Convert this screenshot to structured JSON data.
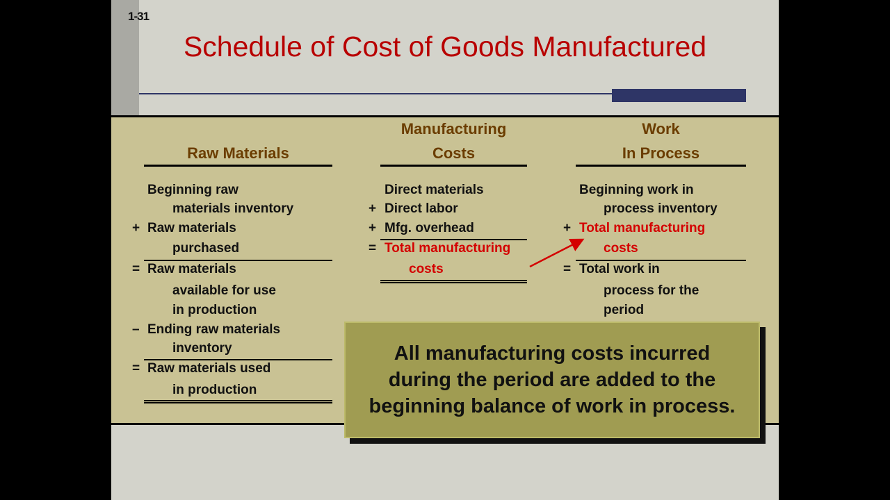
{
  "slide_number": "1-31",
  "title": "Schedule of Cost of Goods Manufactured",
  "colors": {
    "title": "#b80000",
    "header": "#6b3d00",
    "highlight": "#d40000",
    "accent_bar": "#2e3566",
    "panel": "#c9c294",
    "note_box": "#a09c52"
  },
  "columns": [
    {
      "header": [
        "",
        "Raw Materials"
      ],
      "lines": [
        {
          "op": "",
          "text": "Beginning raw",
          "indent": false
        },
        {
          "op": "",
          "text": "materials inventory",
          "indent": true
        },
        {
          "op": "+",
          "text": "Raw materials",
          "indent": false
        },
        {
          "op": "",
          "text": "purchased",
          "indent": true
        },
        {
          "op": "=",
          "text": "Raw materials",
          "indent": false
        },
        {
          "op": "",
          "text": "available for use",
          "indent": true
        },
        {
          "op": "",
          "text": "in production",
          "indent": true
        },
        {
          "op": "–",
          "text": "Ending raw materials",
          "indent": false
        },
        {
          "op": "",
          "text": "inventory",
          "indent": true
        },
        {
          "op": "=",
          "text": "Raw materials used",
          "indent": false
        },
        {
          "op": "",
          "text": "in production",
          "indent": true
        }
      ]
    },
    {
      "header": [
        "Manufacturing",
        "Costs"
      ],
      "lines": [
        {
          "op": "",
          "text": "Direct materials",
          "indent": false
        },
        {
          "op": "+",
          "text": "Direct labor",
          "indent": false
        },
        {
          "op": "+",
          "text": "Mfg. overhead",
          "indent": false
        },
        {
          "op": "=",
          "text": "Total manufacturing",
          "indent": false,
          "highlight": true
        },
        {
          "op": "",
          "text": "costs",
          "indent": true,
          "highlight": true
        }
      ]
    },
    {
      "header": [
        "Work",
        "In Process"
      ],
      "lines": [
        {
          "op": "",
          "text": "Beginning work in",
          "indent": false
        },
        {
          "op": "",
          "text": "process inventory",
          "indent": true
        },
        {
          "op": "+",
          "text": "Total manufacturing",
          "indent": false,
          "highlight": true
        },
        {
          "op": "",
          "text": "costs",
          "indent": true,
          "highlight": true
        },
        {
          "op": "=",
          "text": "Total work in",
          "indent": false
        },
        {
          "op": "",
          "text": "process for the",
          "indent": true
        },
        {
          "op": "",
          "text": "period",
          "indent": true
        }
      ]
    }
  ],
  "note": "All manufacturing costs incurred during the period are added to the beginning balance of work in process."
}
